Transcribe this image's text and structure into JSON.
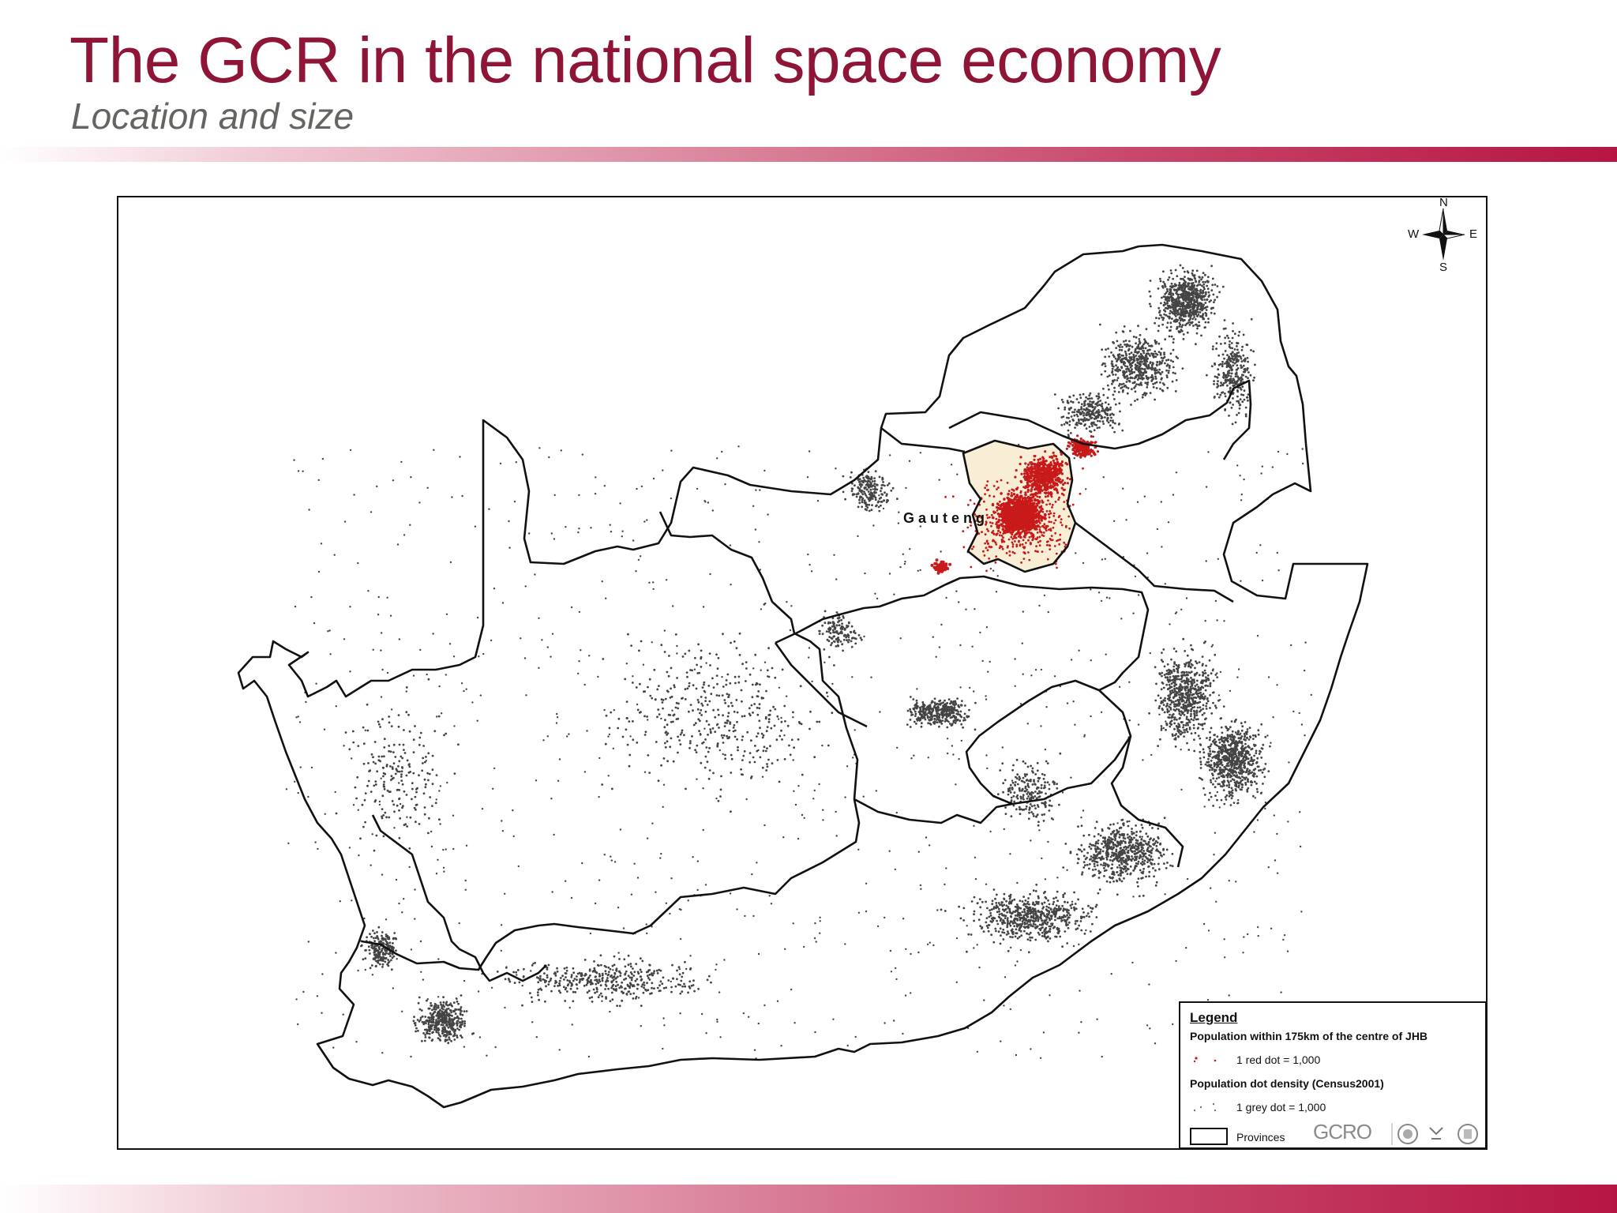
{
  "slide": {
    "title": "The GCR in the national space economy",
    "subtitle": "Location and size"
  },
  "map": {
    "place_label": "Gauteng",
    "compass": {
      "north": "N",
      "south": "S",
      "east": "E",
      "west": "W"
    },
    "colors": {
      "red_dot": "#c81a1a",
      "grey_dot": "#444444",
      "gauteng_fill": "#f8eed6",
      "boundary": "#111111"
    }
  },
  "legend": {
    "title": "Legend",
    "red_heading": "Population within 175km of the centre of JHB",
    "red_item": "1 red dot = 1,000",
    "grey_heading": "Population dot density (Census2001)",
    "grey_item": "1 grey dot = 1,000",
    "provinces_item": "Provinces",
    "logo_text": "GCRO"
  }
}
